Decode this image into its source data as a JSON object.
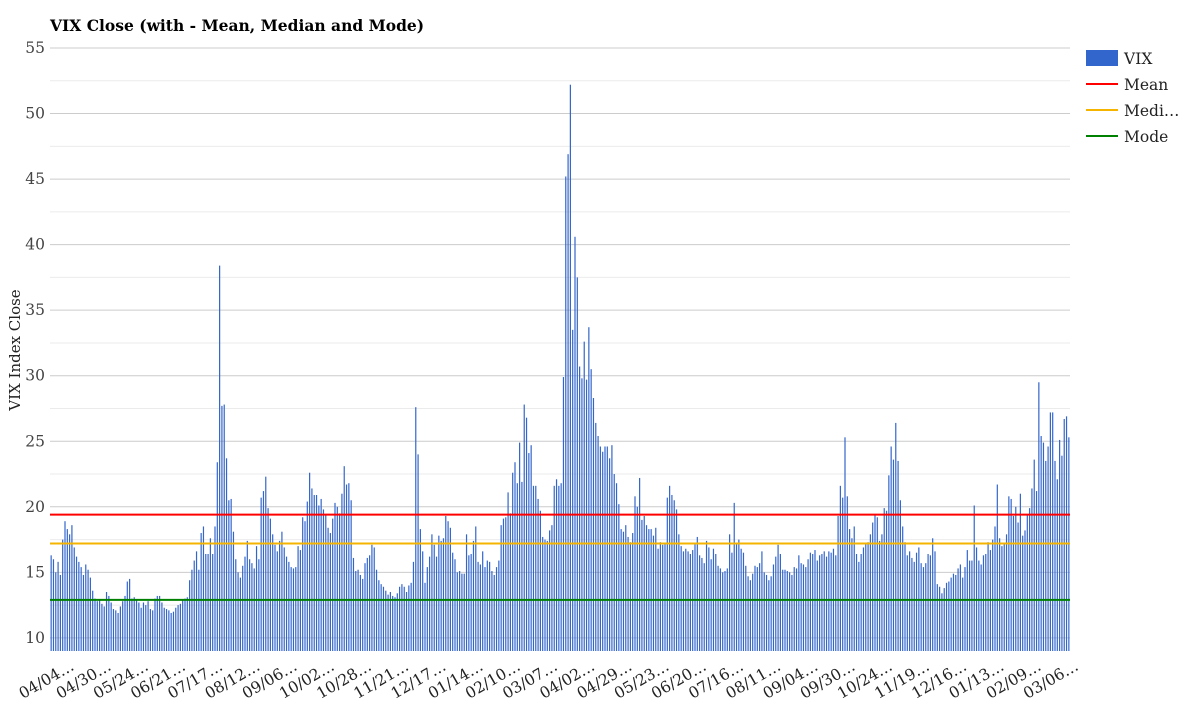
{
  "chart_data": {
    "type": "bar",
    "title": "VIX Close (with - Mean, Median and Mode)",
    "xlabel": "",
    "ylabel": "VIX Index Close",
    "ylim": [
      9,
      55
    ],
    "yticks": [
      10,
      15,
      20,
      25,
      30,
      35,
      40,
      45,
      50,
      55
    ],
    "grid": true,
    "legend_position": "right",
    "colors": {
      "bars": "#3366cc",
      "mean": "#ff0000",
      "median": "#f4b400",
      "mode": "#008000"
    },
    "x_tick_labels": [
      "04/04…",
      "04/30…",
      "05/24…",
      "06/21…",
      "07/17…",
      "08/12…",
      "09/06…",
      "10/02…",
      "10/28…",
      "11/21…",
      "12/17…",
      "01/14…",
      "02/10…",
      "03/07…",
      "04/02…",
      "04/29…",
      "05/23…",
      "06/20…",
      "07/16…",
      "08/11…",
      "09/04…",
      "09/30…",
      "10/24…",
      "11/19…",
      "12/16…",
      "01/13…",
      "02/09…",
      "03/06…"
    ],
    "series": [
      {
        "name": "VIX",
        "kind": "bar",
        "values": [
          16.3,
          16.0,
          15.0,
          15.8,
          14.8,
          17.5,
          18.9,
          18.3,
          17.9,
          18.6,
          16.9,
          16.2,
          15.8,
          15.4,
          14.8,
          15.6,
          15.2,
          14.6,
          13.6,
          13.0,
          12.8,
          12.9,
          12.6,
          12.4,
          13.5,
          13.2,
          12.7,
          12.2,
          12.1,
          11.9,
          12.4,
          12.8,
          13.2,
          14.3,
          14.5,
          13.0,
          13.1,
          12.9,
          12.7,
          12.3,
          12.7,
          12.5,
          12.8,
          12.2,
          12.1,
          13.0,
          13.2,
          13.2,
          12.7,
          12.3,
          12.2,
          12.1,
          11.9,
          12.0,
          12.3,
          12.5,
          12.6,
          12.9,
          13.0,
          13.1,
          14.4,
          15.2,
          15.9,
          16.6,
          15.2,
          18.0,
          18.5,
          16.4,
          16.4,
          17.6,
          16.4,
          18.5,
          23.4,
          38.4,
          27.7,
          27.8,
          23.7,
          20.5,
          20.6,
          18.1,
          16.0,
          15.0,
          14.6,
          15.5,
          16.2,
          17.4,
          16.0,
          15.7,
          15.3,
          17.0,
          16.0,
          20.7,
          21.2,
          22.3,
          19.9,
          19.1,
          17.9,
          17.1,
          16.6,
          17.4,
          18.1,
          16.9,
          16.2,
          15.8,
          15.4,
          15.3,
          15.4,
          17.0,
          16.7,
          19.2,
          18.9,
          20.4,
          22.6,
          21.4,
          20.9,
          20.9,
          20.1,
          20.6,
          19.8,
          19.4,
          18.4,
          18.0,
          19.1,
          20.3,
          20.0,
          19.5,
          21.0,
          23.1,
          21.7,
          21.8,
          20.5,
          16.1,
          15.1,
          15.2,
          14.8,
          14.5,
          15.7,
          16.1,
          16.3,
          17.1,
          16.9,
          15.2,
          14.4,
          14.1,
          13.9,
          13.6,
          13.3,
          13.5,
          13.2,
          13.1,
          13.4,
          13.9,
          14.1,
          13.9,
          13.5,
          14.0,
          14.2,
          15.8,
          27.6,
          24.0,
          18.3,
          16.6,
          14.2,
          15.4,
          16.2,
          17.9,
          17.1,
          16.2,
          17.8,
          17.4,
          17.6,
          19.3,
          18.9,
          18.4,
          16.5,
          16.0,
          15.0,
          15.1,
          14.9,
          14.9,
          17.9,
          16.3,
          16.4,
          17.4,
          18.5,
          15.8,
          15.6,
          16.6,
          15.4,
          15.9,
          15.8,
          15.1,
          14.8,
          15.4,
          15.9,
          18.6,
          19.1,
          19.2,
          21.1,
          19.5,
          22.6,
          23.4,
          21.8,
          24.9,
          21.9,
          27.8,
          26.8,
          24.1,
          24.7,
          21.6,
          21.6,
          20.6,
          19.7,
          17.7,
          17.5,
          17.4,
          18.2,
          18.6,
          21.6,
          22.1,
          21.6,
          21.8,
          29.9,
          45.2,
          46.9,
          52.2,
          33.5,
          40.6,
          37.5,
          30.7,
          29.8,
          32.6,
          29.7,
          33.7,
          30.5,
          28.3,
          26.4,
          25.4,
          24.6,
          24.2,
          24.6,
          24.6,
          23.7,
          24.7,
          22.5,
          21.8,
          20.2,
          18.3,
          18.1,
          18.6,
          17.7,
          17.3,
          18.0,
          20.8,
          20.0,
          22.2,
          19.0,
          19.3,
          18.6,
          18.3,
          18.3,
          17.8,
          18.4,
          16.8,
          17.3,
          17.1,
          17.2,
          20.7,
          21.6,
          20.9,
          20.5,
          19.8,
          17.9,
          17.0,
          16.6,
          16.8,
          16.6,
          16.4,
          16.7,
          17.2,
          17.7,
          16.3,
          16.1,
          15.7,
          17.4,
          16.9,
          16.0,
          16.8,
          16.4,
          15.5,
          15.3,
          15.0,
          15.1,
          15.3,
          17.9,
          16.5,
          20.3,
          17.2,
          17.5,
          16.8,
          16.5,
          15.5,
          14.7,
          14.4,
          14.9,
          15.5,
          15.4,
          15.7,
          16.6,
          15.0,
          14.8,
          14.4,
          14.7,
          15.6,
          16.2,
          17.1,
          16.4,
          15.2,
          15.2,
          15.1,
          15.0,
          14.8,
          15.4,
          15.3,
          16.3,
          15.7,
          15.6,
          15.4,
          16.0,
          16.5,
          16.4,
          16.7,
          15.9,
          16.3,
          16.4,
          16.6,
          16.2,
          16.6,
          16.5,
          16.8,
          16.3,
          19.3,
          21.6,
          20.7,
          25.3,
          20.8,
          18.3,
          17.6,
          18.5,
          16.4,
          15.8,
          16.4,
          16.9,
          17.2,
          17.3,
          17.9,
          18.8,
          19.4,
          19.2,
          17.4,
          17.9,
          19.9,
          19.7,
          22.4,
          24.6,
          23.6,
          26.4,
          23.5,
          20.5,
          18.5,
          17.3,
          16.3,
          16.6,
          16.1,
          15.8,
          16.5,
          16.9,
          15.7,
          15.4,
          15.7,
          16.4,
          16.3,
          17.6,
          16.6,
          14.1,
          13.9,
          13.4,
          13.8,
          14.2,
          14.3,
          14.6,
          14.9,
          14.8,
          15.3,
          15.6,
          14.6,
          15.4,
          16.7,
          15.9,
          15.9,
          20.1,
          16.9,
          15.9,
          15.6,
          16.3,
          16.4,
          17.3,
          16.7,
          17.5,
          18.5,
          21.7,
          17.6,
          17.0,
          17.2,
          17.9,
          20.8,
          20.6,
          19.3,
          20.0,
          18.8,
          21.0,
          17.8,
          18.2,
          19.4,
          19.9,
          21.4,
          23.6,
          21.2,
          29.5,
          25.4,
          24.9,
          23.5,
          24.6,
          27.2,
          27.2,
          23.5,
          22.1,
          25.1,
          23.9,
          26.7,
          26.9,
          25.3
        ]
      },
      {
        "name": "Mean",
        "kind": "line",
        "value": 19.4,
        "legend_label": "Mean"
      },
      {
        "name": "Median",
        "kind": "line",
        "value": 17.2,
        "legend_label": "Medi…"
      },
      {
        "name": "Mode",
        "kind": "line",
        "value": 12.9,
        "legend_label": "Mode"
      }
    ]
  }
}
